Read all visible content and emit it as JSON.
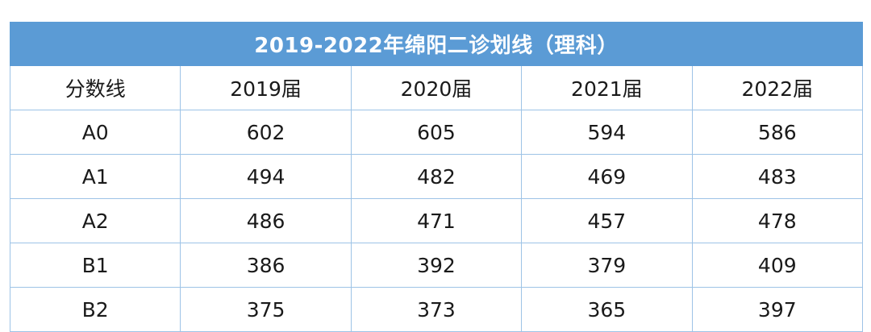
{
  "table": {
    "title": "2019-2022年绵阳二诊划线（理科）",
    "headers": [
      "分数线",
      "2019届",
      "2020届",
      "2021届",
      "2022届"
    ],
    "rows": [
      {
        "label": "A0",
        "values": [
          "602",
          "605",
          "594",
          "586"
        ]
      },
      {
        "label": "A1",
        "values": [
          "494",
          "482",
          "469",
          "483"
        ]
      },
      {
        "label": "A2",
        "values": [
          "486",
          "471",
          "457",
          "478"
        ]
      },
      {
        "label": "B1",
        "values": [
          "386",
          "392",
          "379",
          "409"
        ]
      },
      {
        "label": "B2",
        "values": [
          "375",
          "373",
          "365",
          "397"
        ]
      }
    ]
  },
  "colors": {
    "title_background": "#5b9bd5",
    "title_text": "#ffffff",
    "grid_line": "#9dc3e6"
  }
}
